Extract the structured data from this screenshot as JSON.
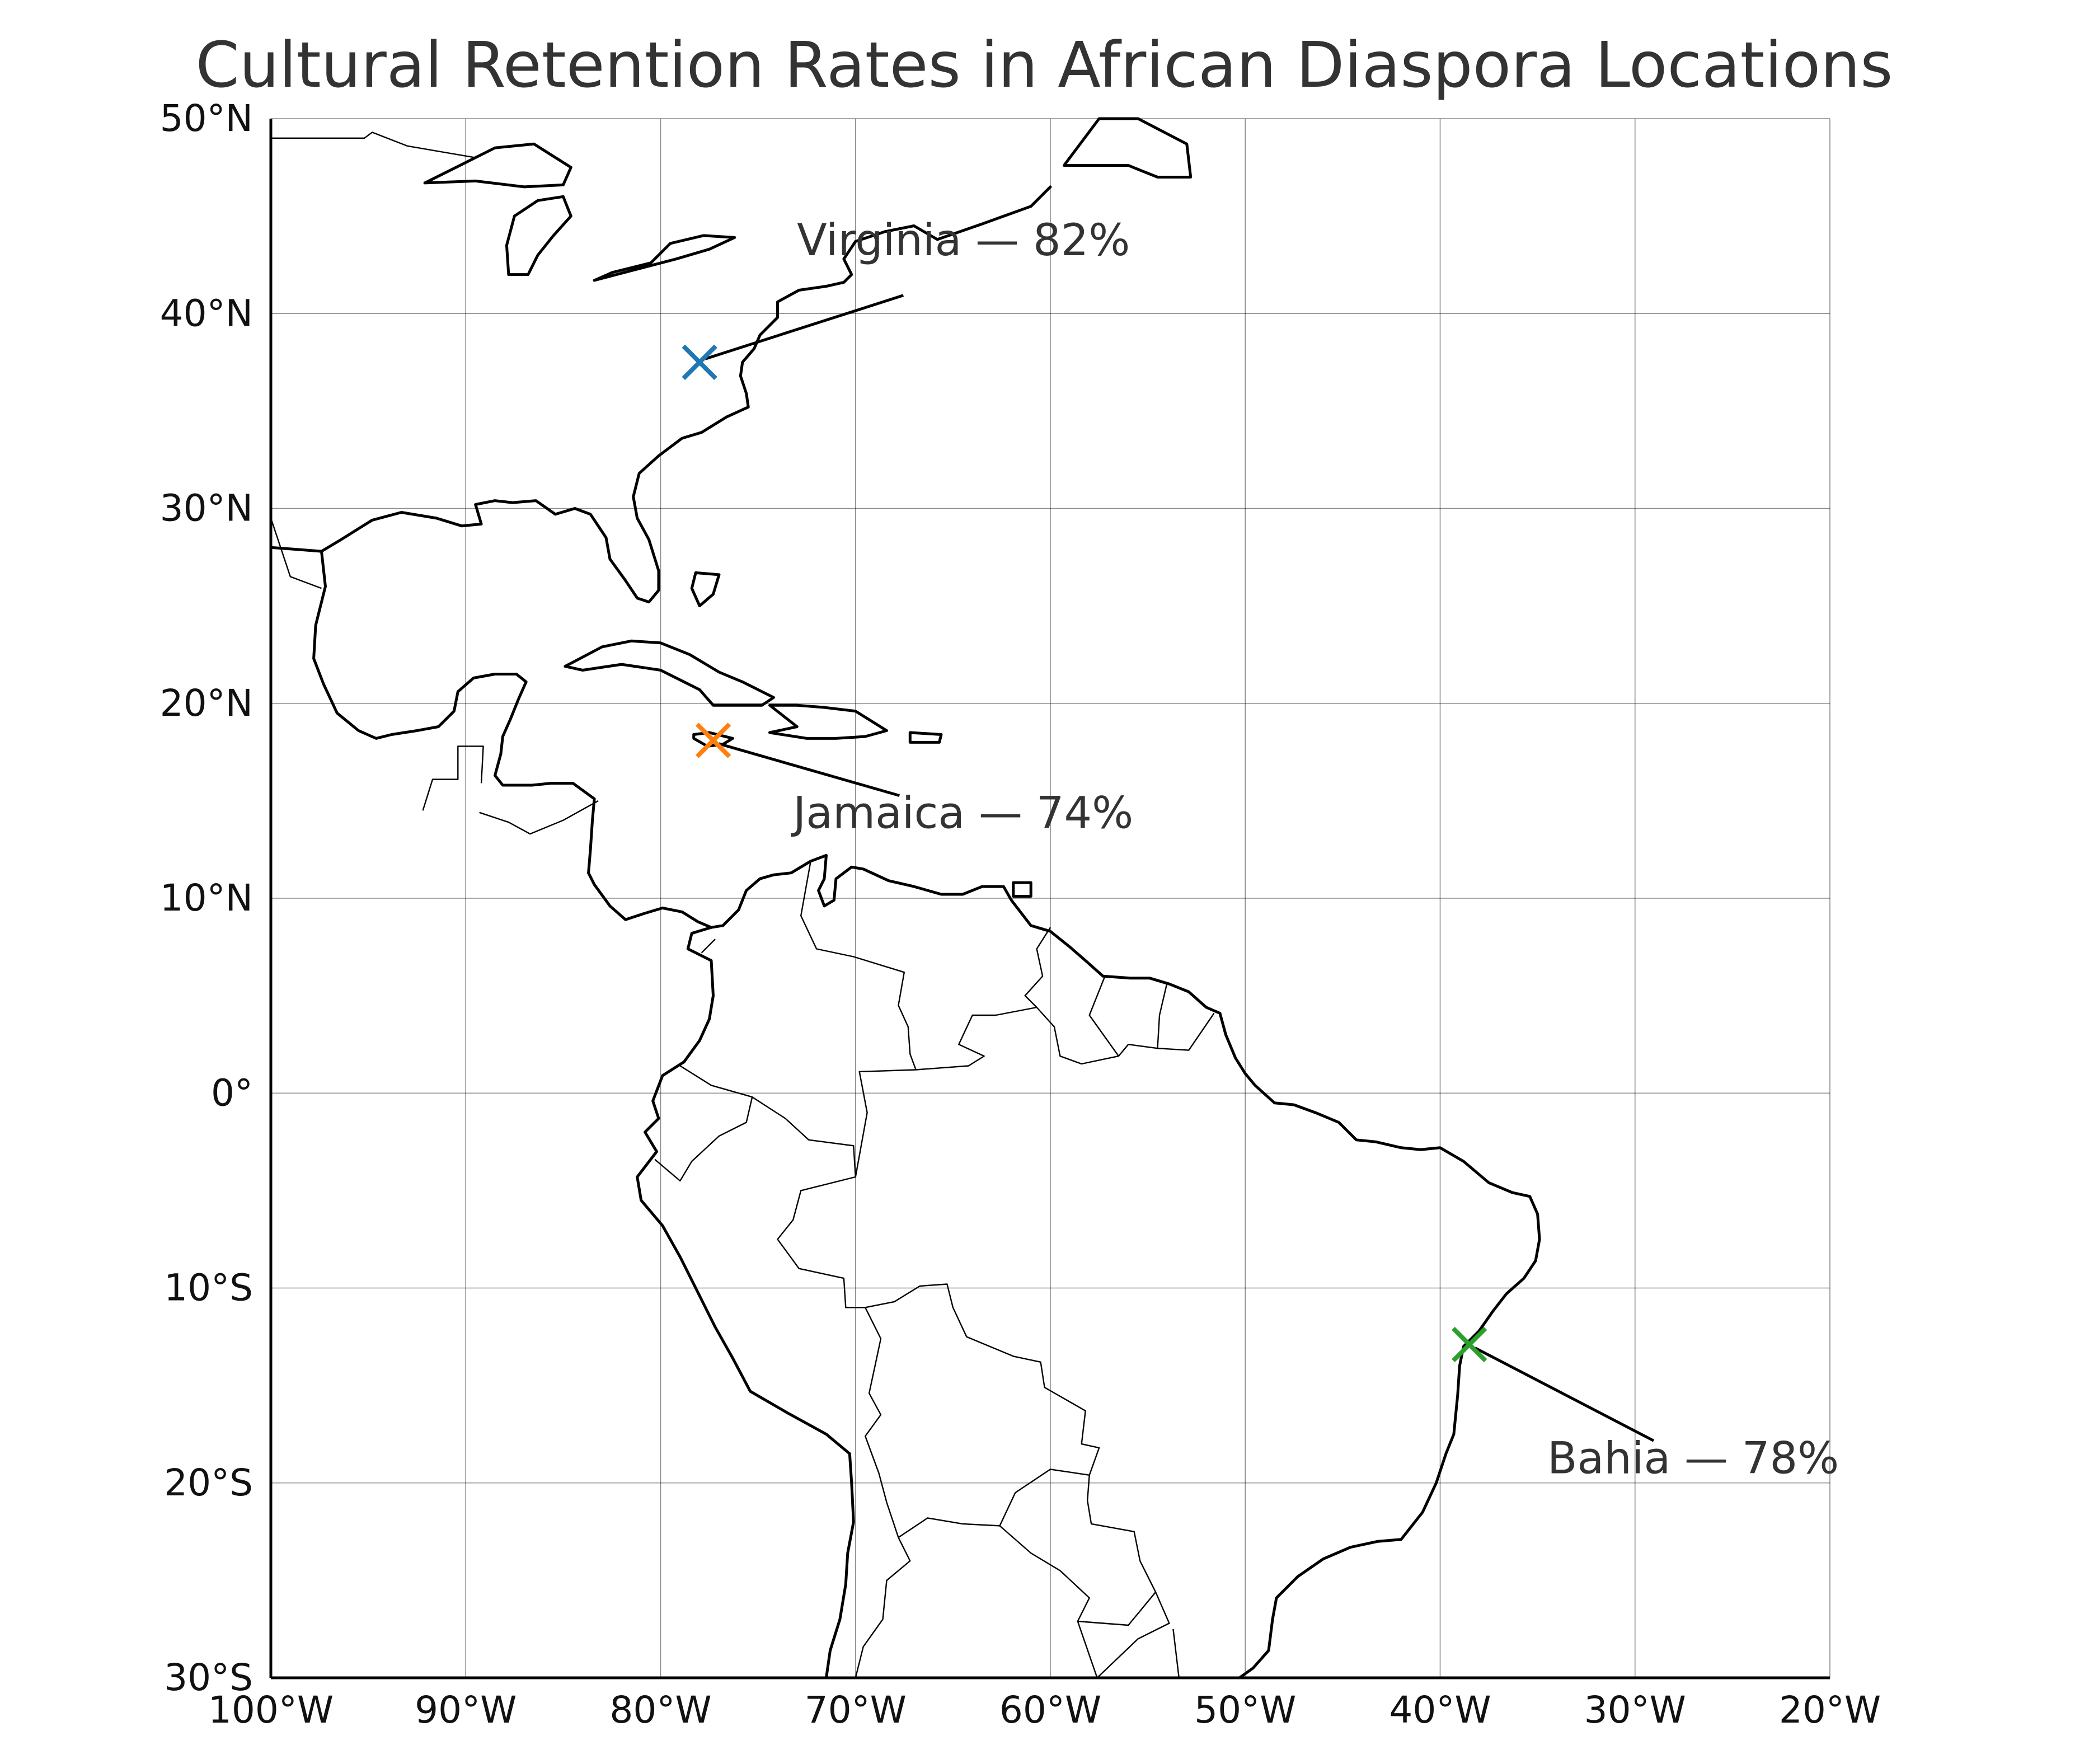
{
  "title": "Cultural Retention Rates in African Diaspora Locations",
  "map": {
    "extent": {
      "lon": [
        -100,
        -20
      ],
      "lat": [
        -30,
        50
      ]
    },
    "x_ticks": [
      {
        "value": -100,
        "label": "100°W"
      },
      {
        "value": -90,
        "label": "90°W"
      },
      {
        "value": -80,
        "label": "80°W"
      },
      {
        "value": -70,
        "label": "70°W"
      },
      {
        "value": -60,
        "label": "60°W"
      },
      {
        "value": -50,
        "label": "50°W"
      },
      {
        "value": -40,
        "label": "40°W"
      },
      {
        "value": -30,
        "label": "30°W"
      },
      {
        "value": -20,
        "label": "20°W"
      }
    ],
    "y_ticks": [
      {
        "value": 50,
        "label": "50°N"
      },
      {
        "value": 40,
        "label": "40°N"
      },
      {
        "value": 30,
        "label": "30°N"
      },
      {
        "value": 20,
        "label": "20°N"
      },
      {
        "value": 10,
        "label": "10°N"
      },
      {
        "value": 0,
        "label": "0°"
      },
      {
        "value": -10,
        "label": "10°S"
      },
      {
        "value": -20,
        "label": "20°S"
      },
      {
        "value": -30,
        "label": "30°S"
      }
    ],
    "grid": true,
    "locations": [
      {
        "name": "Virginia",
        "lon": -78.0,
        "lat": 37.5,
        "rate": 82,
        "label": "Virginia — 82%",
        "label_lon": -73.0,
        "label_lat": 43.0,
        "color": "#1f77b4",
        "marker": "x-icon"
      },
      {
        "name": "Jamaica",
        "lon": -77.3,
        "lat": 18.1,
        "rate": 74,
        "label": "Jamaica — 74%",
        "label_lon": -73.2,
        "label_lat": 13.6,
        "color": "#ff7f0e",
        "marker": "x-icon"
      },
      {
        "name": "Bahia",
        "lon": -38.5,
        "lat": -12.9,
        "rate": 78,
        "label": "Bahia — 78%",
        "label_lon": -34.5,
        "label_lat": -19.5,
        "color": "#2ca02c",
        "marker": "x-icon"
      }
    ]
  }
}
